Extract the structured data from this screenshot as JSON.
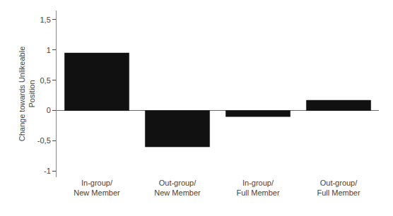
{
  "chart_data": {
    "type": "bar",
    "categories": [
      "In-group/\nNew Member",
      "Out-group/\nNew Member",
      "In-group/\nFull Member",
      "Out-group/\nFull Member"
    ],
    "values": [
      0.95,
      -0.6,
      -0.1,
      0.17
    ],
    "color": "#111111",
    "ylabel": "Change towards Unlikeable\nPosition",
    "ylim": [
      -1.1,
      1.65
    ],
    "yticks": [
      -1,
      {
        "value": -0.5,
        "label": "-0,5"
      },
      0,
      {
        "value": 0.5,
        "label": "0,5"
      },
      1,
      {
        "value": 1.5,
        "label": "1,5"
      }
    ],
    "grid": false
  }
}
